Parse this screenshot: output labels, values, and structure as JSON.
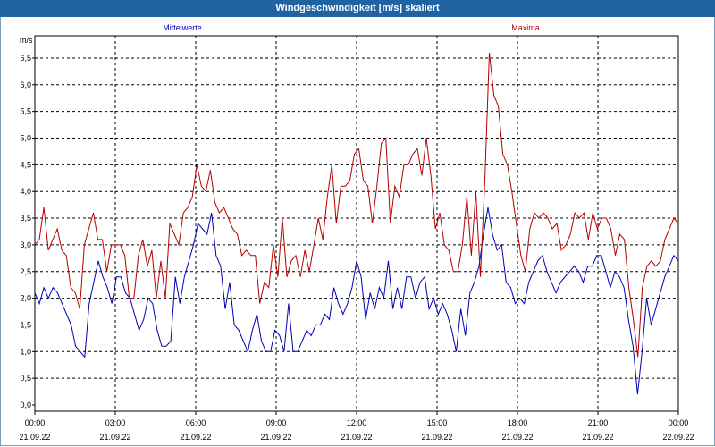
{
  "window": {
    "title": "Windgeschwindigkeit [m/s] skaliert"
  },
  "colors": {
    "mean": "#0000b4",
    "max": "#b40000",
    "titlebar": "#1f63a3",
    "grid": "#000000"
  },
  "chart_data": {
    "type": "line",
    "unit": "m/s",
    "ylim": [
      0,
      6.9
    ],
    "yticks": [
      "0,0",
      "0,5",
      "1,0",
      "1,5",
      "2,0",
      "2,5",
      "3,0",
      "3,5",
      "4,0",
      "4,5",
      "5,0",
      "5,5",
      "6,0",
      "6,5"
    ],
    "xlim": [
      0,
      24
    ],
    "xticks": [
      {
        "time": "00:00",
        "date": "21.09.22"
      },
      {
        "time": "03:00",
        "date": "21.09.22"
      },
      {
        "time": "06:00",
        "date": "21.09.22"
      },
      {
        "time": "09:00",
        "date": "21.09.22"
      },
      {
        "time": "12:00",
        "date": "21.09.22"
      },
      {
        "time": "15:00",
        "date": "21.09.22"
      },
      {
        "time": "18:00",
        "date": "21.09.22"
      },
      {
        "time": "21:00",
        "date": "21.09.22"
      },
      {
        "time": "00:00",
        "date": "22.09.22"
      }
    ],
    "grid": true,
    "series": [
      {
        "name": "Mittelwerte",
        "values": [
          2.1,
          1.9,
          2.2,
          2.0,
          2.2,
          2.1,
          1.9,
          1.7,
          1.5,
          1.1,
          1.0,
          0.9,
          1.9,
          2.3,
          2.7,
          2.4,
          2.2,
          1.9,
          2.4,
          2.4,
          2.1,
          2.0,
          1.7,
          1.4,
          1.6,
          2.0,
          1.9,
          1.4,
          1.1,
          1.1,
          1.2,
          2.4,
          1.9,
          2.4,
          2.7,
          3.0,
          3.4,
          3.3,
          3.2,
          3.6,
          2.8,
          2.6,
          1.8,
          2.3,
          1.5,
          1.4,
          1.2,
          1.0,
          1.4,
          1.7,
          1.2,
          1.0,
          1.0,
          1.4,
          1.3,
          1.0,
          1.9,
          1.0,
          1.0,
          1.2,
          1.4,
          1.3,
          1.5,
          1.5,
          1.7,
          1.6,
          2.2,
          1.9,
          1.7,
          1.9,
          2.2,
          2.7,
          2.4,
          1.6,
          2.1,
          1.8,
          2.2,
          2.0,
          2.7,
          1.8,
          2.2,
          1.8,
          2.4,
          2.4,
          2.0,
          2.3,
          2.4,
          1.8,
          2.0,
          1.7,
          1.9,
          1.7,
          1.4,
          1.0,
          1.8,
          1.3,
          2.1,
          2.3,
          2.6,
          3.2,
          3.7,
          3.2,
          2.9,
          3.0,
          2.3,
          2.2,
          1.9,
          2.0,
          1.9,
          2.3,
          2.5,
          2.7,
          2.8,
          2.5,
          2.3,
          2.1,
          2.3,
          2.4,
          2.5,
          2.6,
          2.5,
          2.3,
          2.6,
          2.6,
          2.8,
          2.8,
          2.5,
          2.2,
          2.5,
          2.4,
          2.2,
          1.6,
          1.1,
          0.2,
          1.0,
          2.0,
          1.5,
          1.8,
          2.1,
          2.4,
          2.6,
          2.8,
          2.7
        ]
      },
      {
        "name": "Maxima",
        "values": [
          3.0,
          3.1,
          3.7,
          2.9,
          3.1,
          3.3,
          2.9,
          2.8,
          2.2,
          2.1,
          1.8,
          3.0,
          3.3,
          3.6,
          3.1,
          3.1,
          2.5,
          3.0,
          3.0,
          3.0,
          2.8,
          2.0,
          2.0,
          2.8,
          3.1,
          2.6,
          2.9,
          2.0,
          2.7,
          2.0,
          3.4,
          3.2,
          3.0,
          3.6,
          3.7,
          3.9,
          4.5,
          4.1,
          4.0,
          4.4,
          3.8,
          3.6,
          3.7,
          3.5,
          3.3,
          3.2,
          2.8,
          2.9,
          2.8,
          2.8,
          1.9,
          2.3,
          2.2,
          3.0,
          2.4,
          3.5,
          2.4,
          2.7,
          2.8,
          2.4,
          2.9,
          2.5,
          3.0,
          3.5,
          3.1,
          3.9,
          4.5,
          3.4,
          4.1,
          4.1,
          4.2,
          4.7,
          4.8,
          4.2,
          4.1,
          3.4,
          4.1,
          4.9,
          5.0,
          3.4,
          4.1,
          3.9,
          4.5,
          4.5,
          4.7,
          4.8,
          4.3,
          5.0,
          4.3,
          3.3,
          3.6,
          3.0,
          2.9,
          2.5,
          2.5,
          3.0,
          3.9,
          2.8,
          4.0,
          2.4,
          4.2,
          6.6,
          5.8,
          5.6,
          4.7,
          4.5,
          4.0,
          3.4,
          2.8,
          2.5,
          3.3,
          3.6,
          3.5,
          3.6,
          3.5,
          3.3,
          3.4,
          2.9,
          3.0,
          3.2,
          3.6,
          3.5,
          3.6,
          3.1,
          3.6,
          3.3,
          3.5,
          3.5,
          3.3,
          2.8,
          3.2,
          3.1,
          2.2,
          1.6,
          0.9,
          2.2,
          2.6,
          2.7,
          2.6,
          2.7,
          3.1,
          3.3,
          3.5,
          3.4
        ]
      }
    ]
  }
}
